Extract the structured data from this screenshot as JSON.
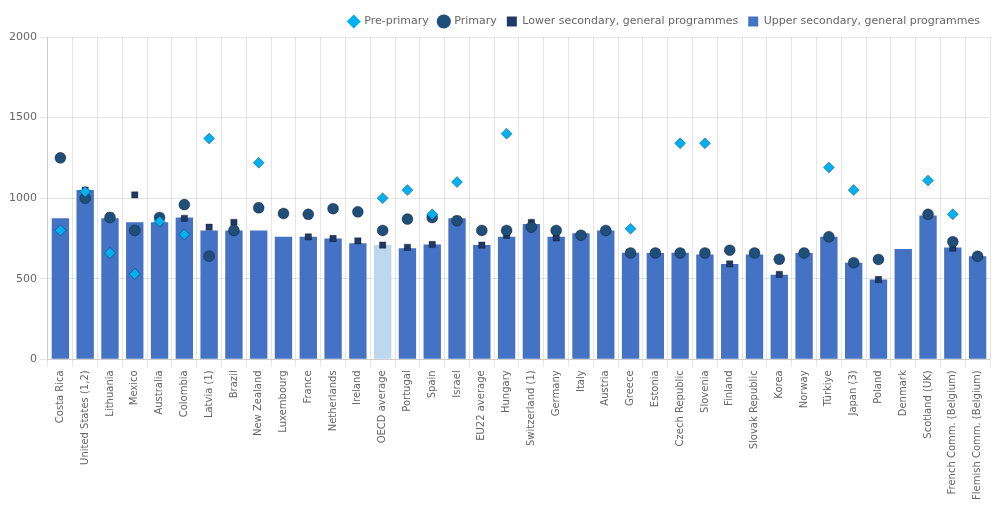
{
  "chart_data": {
    "type": "bar",
    "categories": [
      "Costa Rica",
      "United States (1,2)",
      "Lithuania",
      "Mexico",
      "Australia",
      "Colombia",
      "Latvia (1)",
      "Brazil",
      "New Zealand",
      "Luxembourg",
      "France",
      "Netherlands",
      "Ireland",
      "OECD average",
      "Portugal",
      "Spain",
      "Israel",
      "EU22 average",
      "Hungary",
      "Switzerland (1)",
      "Germany",
      "Italy",
      "Austria",
      "Greece",
      "Estonia",
      "Czech Republic",
      "Slovenia",
      "Finland",
      "Slovak Republic",
      "Korea",
      "Norway",
      "Türkiye",
      "Japan (3)",
      "Poland",
      "Denmark",
      "Scotland (UK)",
      "French Comm. (Belgium)",
      "Flemish Comm. (Belgium)"
    ],
    "series": [
      {
        "name": "Pre-primary",
        "type": "scatter",
        "marker": "diamond",
        "color": "#00B0F0",
        "values": [
          800,
          1040,
          660,
          530,
          855,
          775,
          1370,
          null,
          1220,
          null,
          null,
          null,
          null,
          1000,
          1050,
          900,
          1100,
          null,
          1400,
          null,
          null,
          null,
          null,
          810,
          null,
          1340,
          1340,
          null,
          null,
          null,
          null,
          1190,
          1050,
          null,
          null,
          1110,
          900,
          null
        ]
      },
      {
        "name": "Primary",
        "type": "scatter",
        "marker": "circle",
        "color": "#1F4E79",
        "values": [
          1250,
          1000,
          880,
          800,
          880,
          960,
          640,
          800,
          940,
          905,
          900,
          935,
          915,
          800,
          870,
          880,
          860,
          800,
          800,
          820,
          800,
          770,
          800,
          660,
          660,
          660,
          660,
          677,
          660,
          621,
          660,
          760,
          600,
          620,
          null,
          900,
          730,
          640
        ]
      },
      {
        "name": "Lower secondary, general programmes",
        "type": "scatter",
        "marker": "square",
        "color": "#1F3864",
        "values": [
          1255,
          1050,
          890,
          1020,
          870,
          875,
          820,
          850,
          950,
          900,
          760,
          750,
          735,
          709,
          695,
          713,
          870,
          709,
          770,
          850,
          754,
          770,
          800,
          660,
          660,
          660,
          660,
          592,
          660,
          527,
          660,
          760,
          600,
          495,
          null,
          893,
          690,
          640
        ]
      },
      {
        "name": "Upper secondary, general programmes",
        "type": "bar",
        "color": "#4472C4",
        "colors": [
          "#4472C4",
          "#4472C4",
          "#4472C4",
          "#4472C4",
          "#4472C4",
          "#4472C4",
          "#4472C4",
          "#4472C4",
          "#4472C4",
          "#4472C4",
          "#4472C4",
          "#4472C4",
          "#4472C4",
          "#BDD7EE",
          "#4472C4",
          "#4472C4",
          "#4472C4",
          "#4472C4",
          "#4472C4",
          "#4472C4",
          "#4472C4",
          "#4472C4",
          "#4472C4",
          "#4472C4",
          "#4472C4",
          "#4472C4",
          "#4472C4",
          "#4472C4",
          "#4472C4",
          "#4472C4",
          "#4472C4",
          "#4472C4",
          "#4472C4",
          "#4472C4",
          "#4472C4",
          "#4472C4",
          "#4472C4",
          "#4472C4"
        ],
        "values": [
          875,
          1050,
          875,
          850,
          850,
          880,
          800,
          800,
          800,
          760,
          760,
          750,
          720,
          709,
          690,
          713,
          875,
          709,
          760,
          840,
          760,
          783,
          800,
          661,
          660,
          661,
          650,
          592,
          650,
          525,
          660,
          761,
          600,
          496,
          685,
          893,
          694,
          640
        ]
      }
    ],
    "ylim": [
      0,
      2000
    ],
    "yticks": [
      0,
      500,
      1000,
      1500,
      2000
    ],
    "grid": true,
    "legend": "upper right"
  }
}
